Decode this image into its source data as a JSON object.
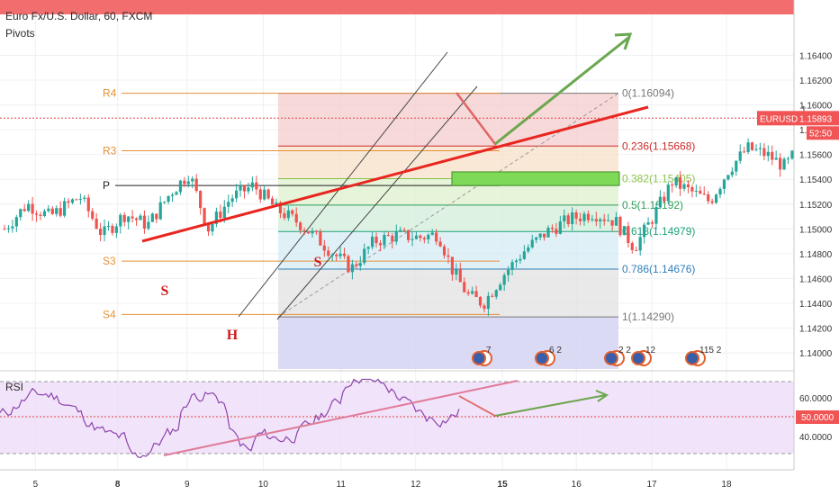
{
  "header": {
    "symbol_title": "Euro Fx/U.S. Dollar, 60, FXCM",
    "indicator": "Pivots"
  },
  "colors": {
    "up": "#26a69a",
    "down": "#ef5350",
    "pivot_line": "#e69138",
    "trend_red": "#e8251f",
    "forecast_green": "#6aa84f",
    "forecast_red": "#e06666",
    "rsi_line": "#8e44ad",
    "top_banner": "#f26d6d",
    "price_tag": "#f05454"
  },
  "price_axis": {
    "ticks": [
      "1.16400",
      "1.16200",
      "1.16000",
      "1.15800",
      "1.15600",
      "1.15400",
      "1.15200",
      "1.15000",
      "1.14800",
      "1.14600",
      "1.14400",
      "1.14200",
      "1.14000"
    ],
    "tag_symbol": "EURUSD",
    "tag_price": "1.15893",
    "countdown": "52:50",
    "partial_tick": "1"
  },
  "rsi_axis": {
    "ticks": [
      "60.0000",
      "40.0000"
    ],
    "tag_value": "50.0000"
  },
  "time_axis": {
    "labels": [
      "5",
      "8",
      "9",
      "10",
      "11",
      "12",
      "15",
      "16",
      "17",
      "18"
    ],
    "bold": [
      "8",
      "15"
    ]
  },
  "pivots": [
    {
      "label": "R4",
      "price": 1.16094
    },
    {
      "label": "R3",
      "price": 1.1563
    },
    {
      "label": "P",
      "price": 1.1535
    },
    {
      "label": "S3",
      "price": 1.1474
    },
    {
      "label": "S4",
      "price": 1.1431
    }
  ],
  "fib_levels": [
    {
      "ratio_label": "0(1.16094)",
      "price": 1.16094,
      "color": "#787878"
    },
    {
      "ratio_label": "0.236(1.15668)",
      "price": 1.15668,
      "color": "#cc2a2a"
    },
    {
      "ratio_label": "0.382(1.15405)",
      "price": 1.15405,
      "color": "#8bc34a"
    },
    {
      "ratio_label": "0.5(1.15192)",
      "price": 1.15192,
      "color": "#2e9e58"
    },
    {
      "ratio_label": "0.618(1.14979)",
      "price": 1.14979,
      "color": "#1fa37a"
    },
    {
      "ratio_label": "0.786(1.14676)",
      "price": 1.14676,
      "color": "#2f7fb8"
    },
    {
      "ratio_label": "1(1.14290)",
      "price": 1.1429,
      "color": "#787878"
    }
  ],
  "pattern_labels": [
    "S",
    "H",
    "S"
  ],
  "rsi_label": "RSI",
  "event_badges": [
    "7",
    "6 2",
    "2 2",
    "12",
    "115 2"
  ],
  "chart_data": {
    "type": "candlestick",
    "title": "Euro Fx/U.S. Dollar, 60, FXCM",
    "xlabel": "",
    "ylabel": "",
    "ylim": [
      1.1387,
      1.1673
    ],
    "x_tick_labels": [
      "5",
      "8",
      "9",
      "10",
      "11",
      "12",
      "15",
      "16",
      "17",
      "18"
    ],
    "series": [
      {
        "name": "EURUSD",
        "close_path": [
          {
            "x": 0,
            "y": 1.15
          },
          {
            "x": 0.3,
            "y": 1.152
          },
          {
            "x": 0.6,
            "y": 1.151
          },
          {
            "x": 1.0,
            "y": 1.1526
          },
          {
            "x": 1.3,
            "y": 1.1495
          },
          {
            "x": 1.6,
            "y": 1.1512
          },
          {
            "x": 1.9,
            "y": 1.1503
          },
          {
            "x": 2.2,
            "y": 1.1529
          },
          {
            "x": 2.45,
            "y": 1.1545
          },
          {
            "x": 2.7,
            "y": 1.15
          },
          {
            "x": 3.0,
            "y": 1.1525
          },
          {
            "x": 3.3,
            "y": 1.1535
          },
          {
            "x": 3.6,
            "y": 1.1516
          },
          {
            "x": 3.9,
            "y": 1.1505
          },
          {
            "x": 4.15,
            "y": 1.1492
          },
          {
            "x": 4.4,
            "y": 1.1478
          },
          {
            "x": 4.6,
            "y": 1.1468
          },
          {
            "x": 4.9,
            "y": 1.149
          },
          {
            "x": 5.2,
            "y": 1.1495
          },
          {
            "x": 5.5,
            "y": 1.1493
          },
          {
            "x": 5.75,
            "y": 1.1496
          },
          {
            "x": 5.95,
            "y": 1.1465
          },
          {
            "x": 6.15,
            "y": 1.1446
          },
          {
            "x": 6.35,
            "y": 1.144
          },
          {
            "x": 6.6,
            "y": 1.1462
          },
          {
            "x": 6.9,
            "y": 1.1483
          },
          {
            "x": 7.2,
            "y": 1.1498
          },
          {
            "x": 7.5,
            "y": 1.1508
          },
          {
            "x": 7.8,
            "y": 1.1513
          },
          {
            "x": 8.1,
            "y": 1.1506
          },
          {
            "x": 8.35,
            "y": 1.1485
          },
          {
            "x": 8.6,
            "y": 1.151
          },
          {
            "x": 8.85,
            "y": 1.1538
          },
          {
            "x": 9.1,
            "y": 1.153
          },
          {
            "x": 9.35,
            "y": 1.1522
          },
          {
            "x": 9.6,
            "y": 1.1548
          },
          {
            "x": 9.85,
            "y": 1.1565
          },
          {
            "x": 10.1,
            "y": 1.156
          },
          {
            "x": 10.35,
            "y": 1.155
          },
          {
            "x": 10.6,
            "y": 1.1572
          },
          {
            "x": 10.85,
            "y": 1.159
          },
          {
            "x": 11.1,
            "y": 1.16
          },
          {
            "x": 11.35,
            "y": 1.1607
          },
          {
            "x": 11.55,
            "y": 1.1603
          },
          {
            "x": 11.75,
            "y": 1.1595
          }
        ]
      }
    ],
    "rsi": {
      "name": "RSI",
      "ticks": [
        60,
        40
      ],
      "ref": 50
    },
    "annotations": [
      "S",
      "H",
      "S"
    ]
  }
}
